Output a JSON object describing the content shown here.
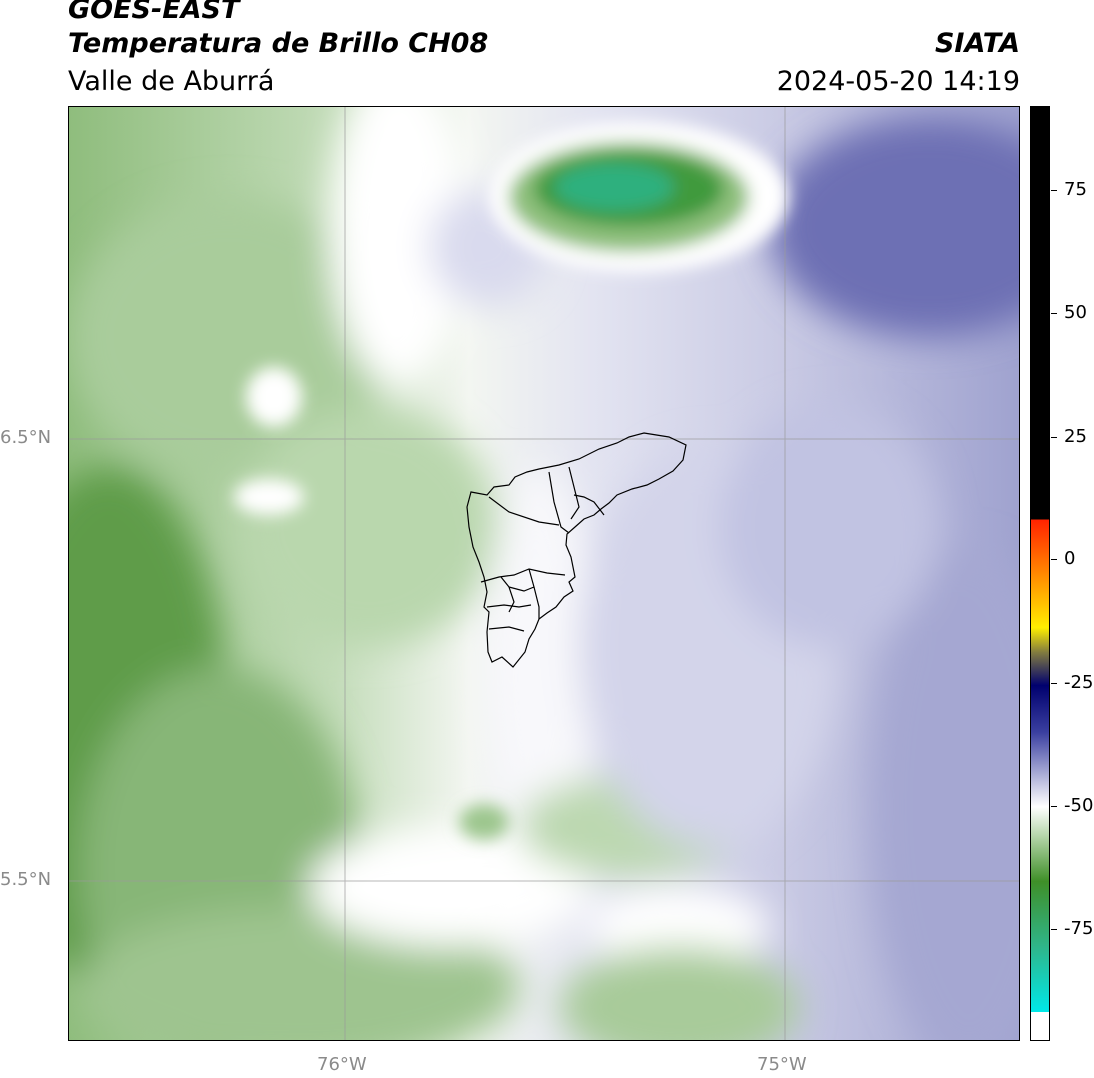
{
  "header": {
    "satellite": "GOES-EAST",
    "product": "Temperatura de Brillo CH08",
    "region": "Valle de Aburrá",
    "organization": "SIATA",
    "datetime": "2024-05-20 14:19"
  },
  "map": {
    "lat_labels": [
      "6.5°N",
      "5.5°N"
    ],
    "lon_labels": [
      "76°W",
      "75°W"
    ],
    "gridlines": true,
    "boundaries": "Valle de Aburrá municipalities"
  },
  "colorbar": {
    "tick_labels": [
      "75",
      "50",
      "25",
      "0",
      "-25",
      "-50",
      "-75"
    ],
    "colors": {
      "black": "#000000",
      "red": "#ff2200",
      "orange": "#ff8800",
      "yellow": "#ffee00",
      "dark_blue": "#00006e",
      "mid_blue": "#3a3fa0",
      "lavender": "#b6b8dc",
      "white": "#ffffff",
      "light_green": "#b8d8ae",
      "green": "#3f8f28",
      "teal": "#2fb58a",
      "cyan": "#00e8e8"
    }
  }
}
